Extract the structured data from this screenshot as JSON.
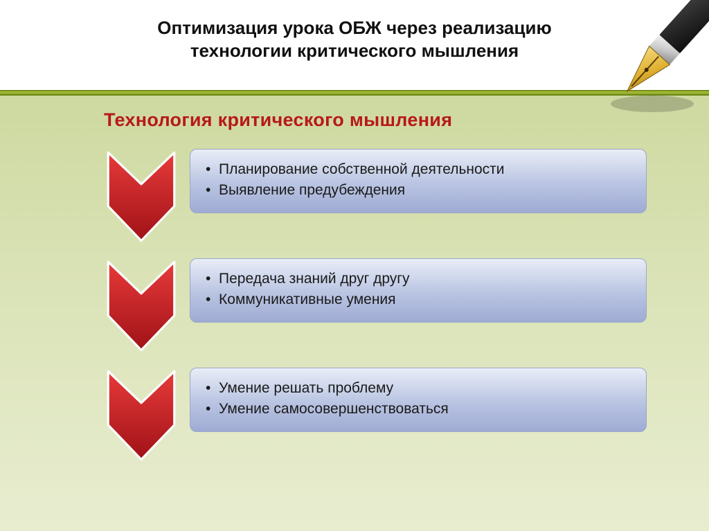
{
  "header": {
    "title_line1": "Оптимизация урока ОБЖ через реализацию",
    "title_line2": "технологии критического мышления",
    "title_color": "#111111",
    "title_fontsize": 26
  },
  "subtitle": {
    "text": "Технология критического мышления",
    "color": "#b81818",
    "fontsize": 27
  },
  "theme": {
    "slide_bg_top": "#c7d494",
    "slide_bg_mid": "#d9e2b5",
    "slide_bg_bottom": "#e8edd0",
    "header_bg": "#ffffff",
    "accent_bar_light": "#a7bd3e",
    "accent_bar_dark": "#6f8a12"
  },
  "chevron_style": {
    "fill_light": "#e73a3a",
    "fill_dark": "#a01217",
    "stroke": "#ffffff",
    "stroke_width": 3
  },
  "card_style": {
    "grad_top": "#e9edf7",
    "grad_mid": "#b9c4e2",
    "grad_bottom": "#9fabd3",
    "border": "#9aa6c9",
    "text_color": "#1a1a1a",
    "item_fontsize": 21,
    "border_radius": 10
  },
  "blocks": [
    {
      "items": [
        "Планирование собственной деятельности",
        "Выявление предубеждения"
      ]
    },
    {
      "items": [
        "Передача знаний друг другу",
        "Коммуникативные умения"
      ]
    },
    {
      "items": [
        "Умение решать проблему",
        "Умение самосовершенствоваться"
      ]
    }
  ],
  "pen_icon": {
    "body_color": "#2a2a2a",
    "nib_color": "#e0b030",
    "nib_dark": "#a07818",
    "ferrule_color": "#c9c9c9"
  }
}
